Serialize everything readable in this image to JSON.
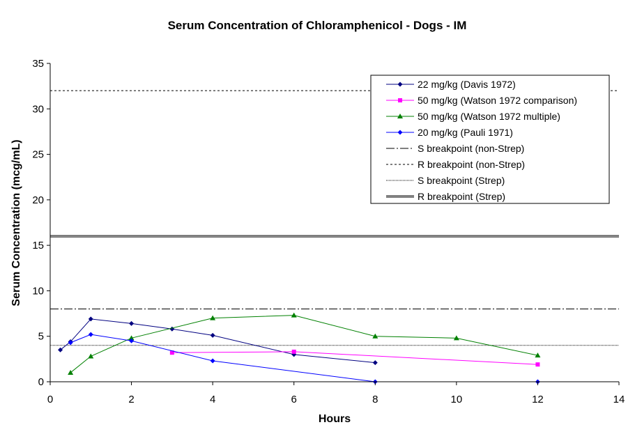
{
  "chart_data": {
    "type": "line",
    "title": "Serum Concentration of Chloramphenicol - Dogs - IM",
    "xlabel": "Hours",
    "ylabel": "Serum Concentration (mcg/mL)",
    "xlim": [
      0,
      14
    ],
    "ylim": [
      0,
      35
    ],
    "xticks": [
      0,
      2,
      4,
      6,
      8,
      10,
      12,
      14
    ],
    "yticks": [
      0,
      5,
      10,
      15,
      20,
      25,
      30,
      35
    ],
    "grid": false,
    "legend_position": "top-right",
    "series": [
      {
        "name": "22 mg/kg (Davis 1972)",
        "color": "#000080",
        "marker": "diamond",
        "points": [
          [
            0.25,
            3.5
          ],
          [
            0.5,
            4.4
          ],
          [
            1,
            6.9
          ],
          [
            2,
            6.4
          ],
          [
            3,
            5.8
          ],
          [
            4,
            5.1
          ],
          [
            6,
            3.0
          ],
          [
            8,
            2.1
          ]
        ]
      },
      {
        "name": "50 mg/kg (Watson 1972 comparison)",
        "color": "#FF00FF",
        "marker": "square",
        "points": [
          [
            3,
            3.2
          ],
          [
            6,
            3.3
          ],
          [
            12,
            1.9
          ]
        ]
      },
      {
        "name": "50 mg/kg (Watson 1972 multiple)",
        "color": "#008000",
        "marker": "triangle",
        "points": [
          [
            0.5,
            1.0
          ],
          [
            1,
            2.8
          ],
          [
            2,
            4.8
          ],
          [
            4,
            7.0
          ],
          [
            6,
            7.3
          ],
          [
            8,
            5.0
          ],
          [
            10,
            4.8
          ],
          [
            12,
            2.9
          ]
        ]
      },
      {
        "name": "20 mg/kg (Pauli 1971)",
        "color": "#0000FF",
        "marker": "diamond",
        "points": [
          [
            0.5,
            4.3
          ],
          [
            1,
            5.2
          ],
          [
            2,
            4.5
          ],
          [
            4,
            2.3
          ],
          [
            8,
            0.0
          ],
          [
            12,
            0.0
          ]
        ]
      }
    ],
    "reference_lines": [
      {
        "name": "S breakpoint (non-Strep)",
        "value": 8,
        "style": "dash-dot"
      },
      {
        "name": "R breakpoint (non-Strep)",
        "value": 32,
        "style": "dotted"
      },
      {
        "name": "S breakpoint (Strep)",
        "value": 4,
        "style": "fine-dotted"
      },
      {
        "name": "R breakpoint (Strep)",
        "value": 16,
        "style": "double"
      }
    ]
  }
}
